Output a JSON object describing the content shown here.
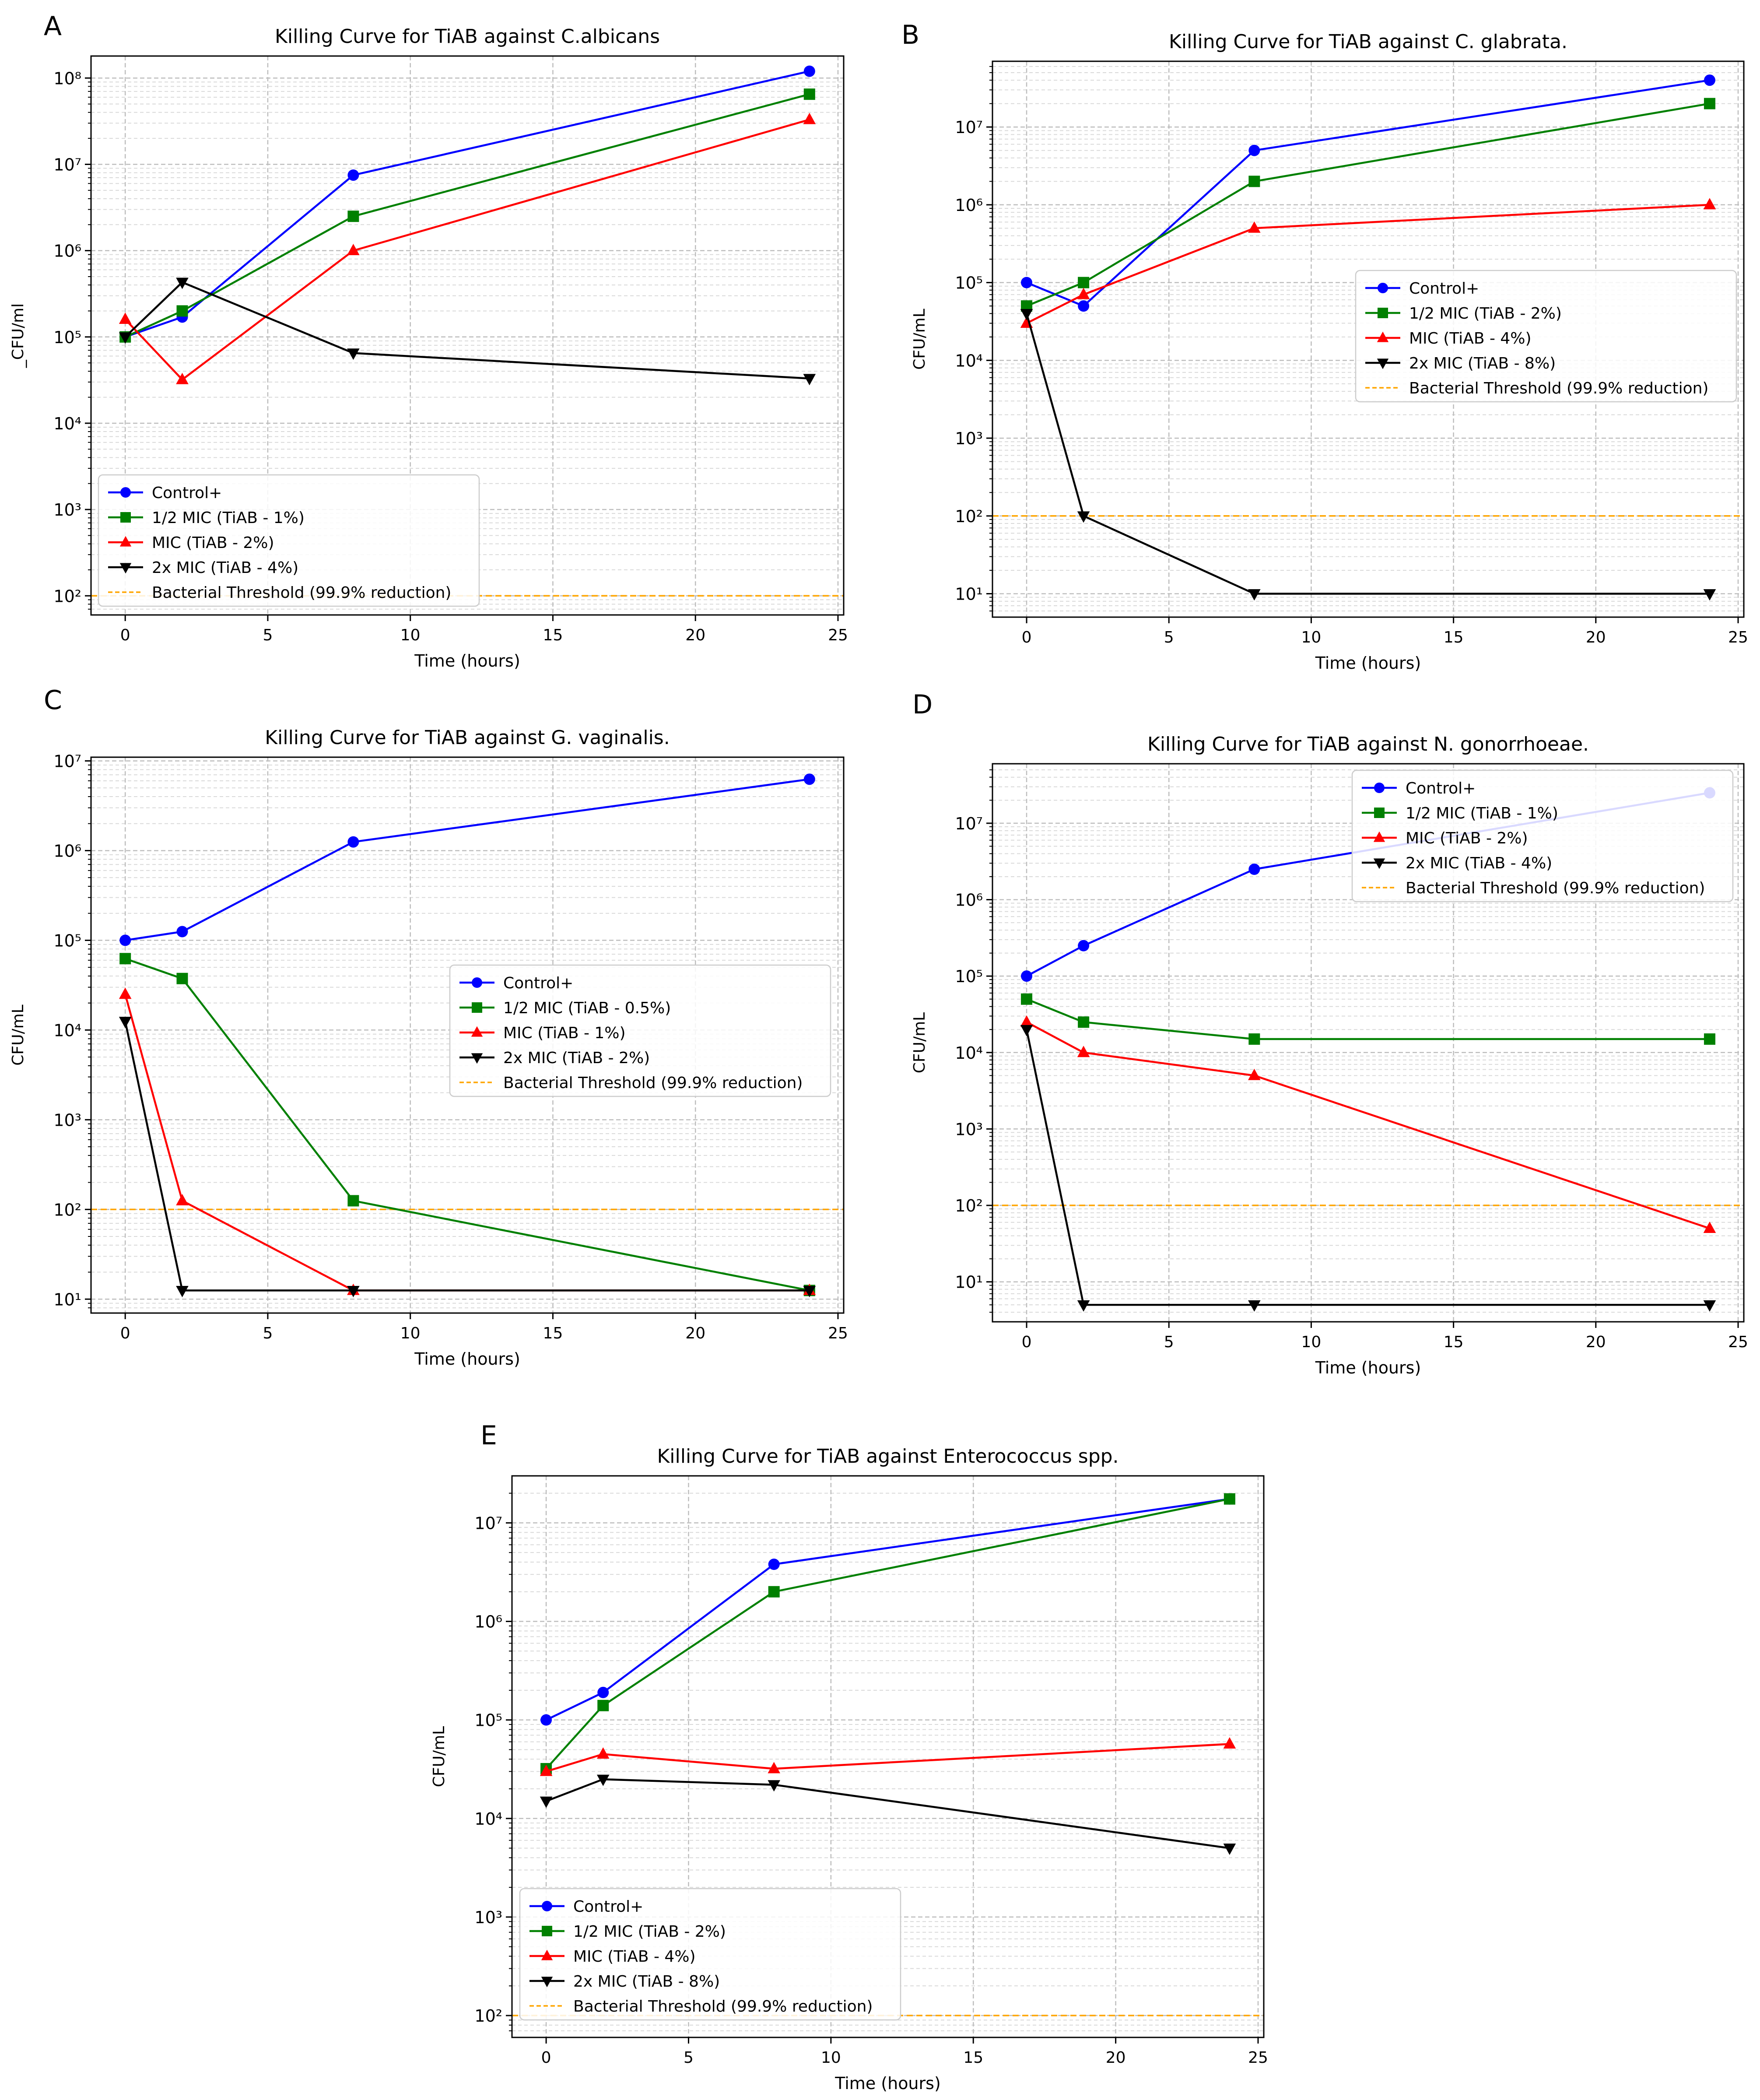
{
  "chart_data": [
    {
      "panel": "A",
      "type": "line",
      "title": "Killing Curve for TiAB against C.albicans",
      "xlabel": "Time (hours)",
      "ylabel": "_CFU/ml",
      "yscale": "log",
      "xlim": [
        -1.2,
        25.2
      ],
      "ylim": [
        60,
        180000000
      ],
      "xticks": [
        0,
        5,
        10,
        15,
        20,
        25
      ],
      "yticks": [
        100,
        1000,
        10000,
        100000,
        1000000,
        10000000,
        100000000
      ],
      "ytick_labels": [
        "10²",
        "10³",
        "10⁴",
        "10⁵",
        "10⁶",
        "10⁷",
        "10⁸"
      ],
      "grid": true,
      "legend_position": "lower-left",
      "x": [
        0,
        2,
        8,
        24
      ],
      "series": [
        {
          "name": "Control+",
          "color": "#0000ff",
          "marker": "circle",
          "values": [
            100000,
            170000,
            7500000,
            120000000
          ]
        },
        {
          "name": "1/2 MIC (TiAB - 1%)",
          "color": "#008000",
          "marker": "square",
          "values": [
            100000,
            200000,
            2500000,
            65000000
          ]
        },
        {
          "name": "MIC (TiAB - 2%)",
          "color": "#ff0000",
          "marker": "triangle-up",
          "values": [
            160000,
            32000,
            1000000,
            33000000
          ]
        },
        {
          "name": "2x MIC (TiAB - 4%)",
          "color": "#000000",
          "marker": "triangle-down",
          "values": [
            100000,
            430000,
            65000,
            33000
          ]
        }
      ],
      "threshold": {
        "name": "Bacterial Threshold (99.9% reduction)",
        "value": 100,
        "color": "#ffa500"
      }
    },
    {
      "panel": "B",
      "type": "line",
      "title": "Killing Curve for TiAB against C. glabrata.",
      "xlabel": "Time (hours)",
      "ylabel": "CFU/mL",
      "yscale": "log",
      "xlim": [
        -1.2,
        25.2
      ],
      "ylim": [
        5,
        70000000
      ],
      "xticks": [
        0,
        5,
        10,
        15,
        20,
        25
      ],
      "yticks": [
        10,
        100,
        1000,
        10000,
        100000,
        1000000,
        10000000
      ],
      "ytick_labels": [
        "10¹",
        "10²",
        "10³",
        "10⁴",
        "10⁵",
        "10⁶",
        "10⁷"
      ],
      "grid": true,
      "legend_position": "center-right",
      "x": [
        0,
        2,
        8,
        24
      ],
      "series": [
        {
          "name": "Control+",
          "color": "#0000ff",
          "marker": "circle",
          "values": [
            100000,
            50000,
            5000000,
            40000000
          ]
        },
        {
          "name": "1/2 MIC (TiAB - 2%)",
          "color": "#008000",
          "marker": "square",
          "values": [
            50000,
            100000,
            2000000,
            20000000
          ]
        },
        {
          "name": "MIC (TiAB - 4%)",
          "color": "#ff0000",
          "marker": "triangle-up",
          "values": [
            30000,
            70000,
            500000,
            1000000
          ]
        },
        {
          "name": "2x MIC (TiAB - 8%)",
          "color": "#000000",
          "marker": "triangle-down",
          "values": [
            40000,
            100,
            10,
            10
          ]
        }
      ],
      "threshold": {
        "name": "Bacterial Threshold (99.9% reduction)",
        "value": 100,
        "color": "#ffa500"
      }
    },
    {
      "panel": "C",
      "type": "line",
      "title": "Killing Curve for TiAB against G. vaginalis.",
      "xlabel": "Time (hours)",
      "ylabel": "CFU/mL",
      "yscale": "log",
      "xlim": [
        -1.2,
        25.2
      ],
      "ylim": [
        7,
        11000000
      ],
      "xticks": [
        0,
        5,
        10,
        15,
        20,
        25
      ],
      "yticks": [
        10,
        100,
        1000,
        10000,
        100000,
        1000000,
        10000000
      ],
      "ytick_labels": [
        "10¹",
        "10²",
        "10³",
        "10⁴",
        "10⁵",
        "10⁶",
        "10⁷"
      ],
      "grid": true,
      "legend_position": "center-right",
      "x": [
        0,
        2,
        8,
        24
      ],
      "series": [
        {
          "name": "Control+",
          "color": "#0000ff",
          "marker": "circle",
          "values": [
            100000,
            125000,
            1250000,
            6250000
          ]
        },
        {
          "name": "1/2 MIC (TiAB - 0.5%)",
          "color": "#008000",
          "marker": "square",
          "values": [
            62500,
            37500,
            125,
            12.5
          ]
        },
        {
          "name": "MIC (TiAB - 1%)",
          "color": "#ff0000",
          "marker": "triangle-up",
          "values": [
            25000,
            125,
            12.5,
            12.5
          ]
        },
        {
          "name": "2x MIC (TiAB - 2%)",
          "color": "#000000",
          "marker": "triangle-down",
          "values": [
            12500,
            12.5,
            12.5,
            12.5
          ]
        }
      ],
      "threshold": {
        "name": "Bacterial Threshold (99.9% reduction)",
        "value": 100,
        "color": "#ffa500"
      }
    },
    {
      "panel": "D",
      "type": "line",
      "title": "Killing Curve for TiAB against N. gonorrhoeae.",
      "xlabel": "Time (hours)",
      "ylabel": "CFU/mL",
      "yscale": "log",
      "xlim": [
        -1.2,
        25.2
      ],
      "ylim": [
        3,
        60000000
      ],
      "xticks": [
        0,
        5,
        10,
        15,
        20,
        25
      ],
      "yticks": [
        10,
        100,
        1000,
        10000,
        100000,
        1000000,
        10000000
      ],
      "ytick_labels": [
        "10¹",
        "10²",
        "10³",
        "10⁴",
        "10⁵",
        "10⁶",
        "10⁷"
      ],
      "grid": true,
      "legend_position": "upper-right",
      "x": [
        0,
        2,
        8,
        24
      ],
      "series": [
        {
          "name": "Control+",
          "color": "#0000ff",
          "marker": "circle",
          "values": [
            100000,
            250000,
            2500000,
            25000000
          ]
        },
        {
          "name": "1/2 MIC (TiAB - 1%)",
          "color": "#008000",
          "marker": "square",
          "values": [
            50000,
            25000,
            15000,
            15000
          ]
        },
        {
          "name": "MIC (TiAB - 2%)",
          "color": "#ff0000",
          "marker": "triangle-up",
          "values": [
            25000,
            10000,
            5000,
            50
          ]
        },
        {
          "name": "2x MIC (TiAB - 4%)",
          "color": "#000000",
          "marker": "triangle-down",
          "values": [
            20000,
            5,
            5,
            5
          ]
        }
      ],
      "threshold": {
        "name": "Bacterial Threshold (99.9% reduction)",
        "value": 100,
        "color": "#ffa500"
      }
    },
    {
      "panel": "E",
      "type": "line",
      "title": "Killing Curve for TiAB against Enterococcus spp.",
      "xlabel": "Time (hours)",
      "ylabel": "CFU/mL",
      "yscale": "log",
      "xlim": [
        -1.2,
        25.2
      ],
      "ylim": [
        60,
        30000000
      ],
      "xticks": [
        0,
        5,
        10,
        15,
        20,
        25
      ],
      "yticks": [
        100,
        1000,
        10000,
        100000,
        1000000,
        10000000
      ],
      "ytick_labels": [
        "10²",
        "10³",
        "10⁴",
        "10⁵",
        "10⁶",
        "10⁷"
      ],
      "grid": true,
      "legend_position": "lower-left",
      "x": [
        0,
        2,
        8,
        24
      ],
      "series": [
        {
          "name": "Control+",
          "color": "#0000ff",
          "marker": "circle",
          "values": [
            100000,
            190000,
            3800000,
            17500000
          ]
        },
        {
          "name": "1/2 MIC (TiAB - 2%)",
          "color": "#008000",
          "marker": "square",
          "values": [
            32000,
            140000,
            2000000,
            17500000
          ]
        },
        {
          "name": "MIC (TiAB - 4%)",
          "color": "#ff0000",
          "marker": "triangle-up",
          "values": [
            30000,
            45000,
            32000,
            57000
          ]
        },
        {
          "name": "2x MIC (TiAB - 8%)",
          "color": "#000000",
          "marker": "triangle-down",
          "values": [
            15000,
            25000,
            22000,
            5000
          ]
        }
      ],
      "threshold": {
        "name": "Bacterial Threshold (99.9% reduction)",
        "value": 100,
        "color": "#ffa500"
      }
    }
  ]
}
